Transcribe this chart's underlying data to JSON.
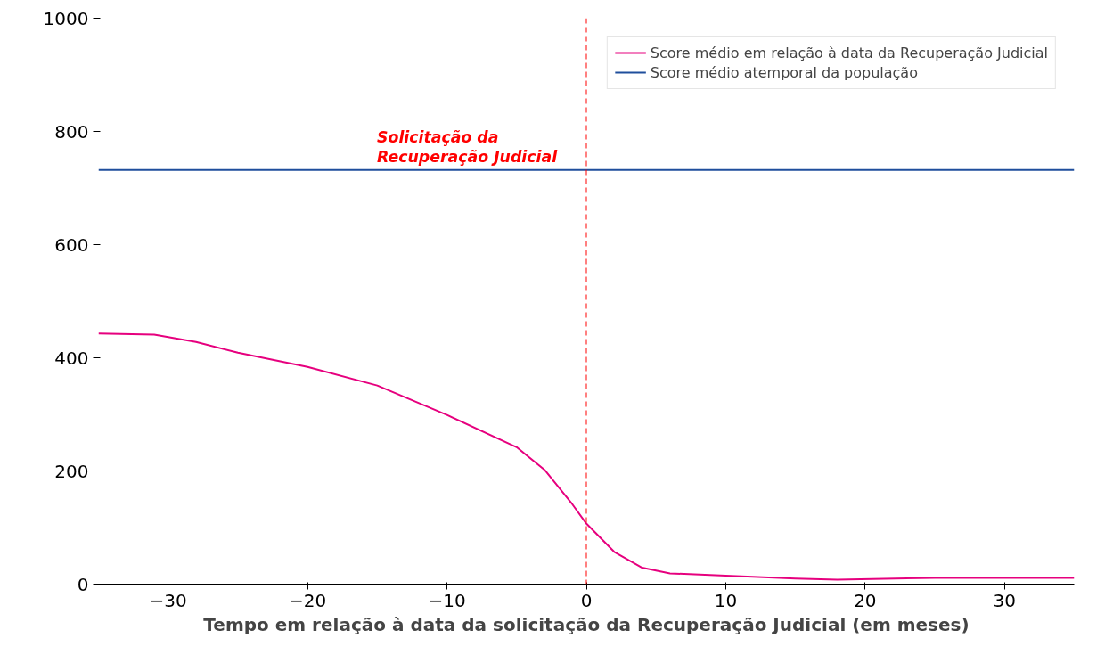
{
  "chart_data": {
    "type": "line",
    "xlabel": "Tempo em relação à data da solicitação da Recuperação Judicial (em meses)",
    "xlim": [
      -35,
      35
    ],
    "xticks": [
      {
        "value": -30,
        "label": "−30"
      },
      {
        "value": -20,
        "label": "−20"
      },
      {
        "value": -10,
        "label": "−10"
      },
      0,
      10,
      20,
      30
    ],
    "ylim": [
      0,
      1000
    ],
    "yticks": [
      0,
      200,
      400,
      600,
      800,
      1000
    ],
    "series": [
      {
        "name": "Score médio em relação à data da Recuperação Judicial",
        "color": "#e6007e",
        "x": [
          -35,
          -31,
          -28,
          -25,
          -20,
          -15,
          -10,
          -5,
          -3,
          -1,
          0,
          2,
          4,
          6,
          10,
          15,
          18,
          25,
          35
        ],
        "values": [
          443,
          441,
          428,
          409,
          384,
          351,
          299,
          242,
          202,
          141,
          107,
          57,
          29,
          19,
          15,
          10,
          8,
          11,
          11
        ]
      },
      {
        "name": "Score médio atemporal da população",
        "color": "#1f4e9c",
        "x": [
          -35,
          35
        ],
        "values": [
          732,
          732
        ]
      }
    ],
    "ref_lines": [
      {
        "axis": "x",
        "value": 0,
        "color": "#ff0000",
        "line_style": "dashed"
      }
    ],
    "annotations": [
      "Solicitação da\nRecuperação Judicial"
    ],
    "grid": false,
    "legend": "top right",
    "marker": "none",
    "line_style": "solid"
  }
}
